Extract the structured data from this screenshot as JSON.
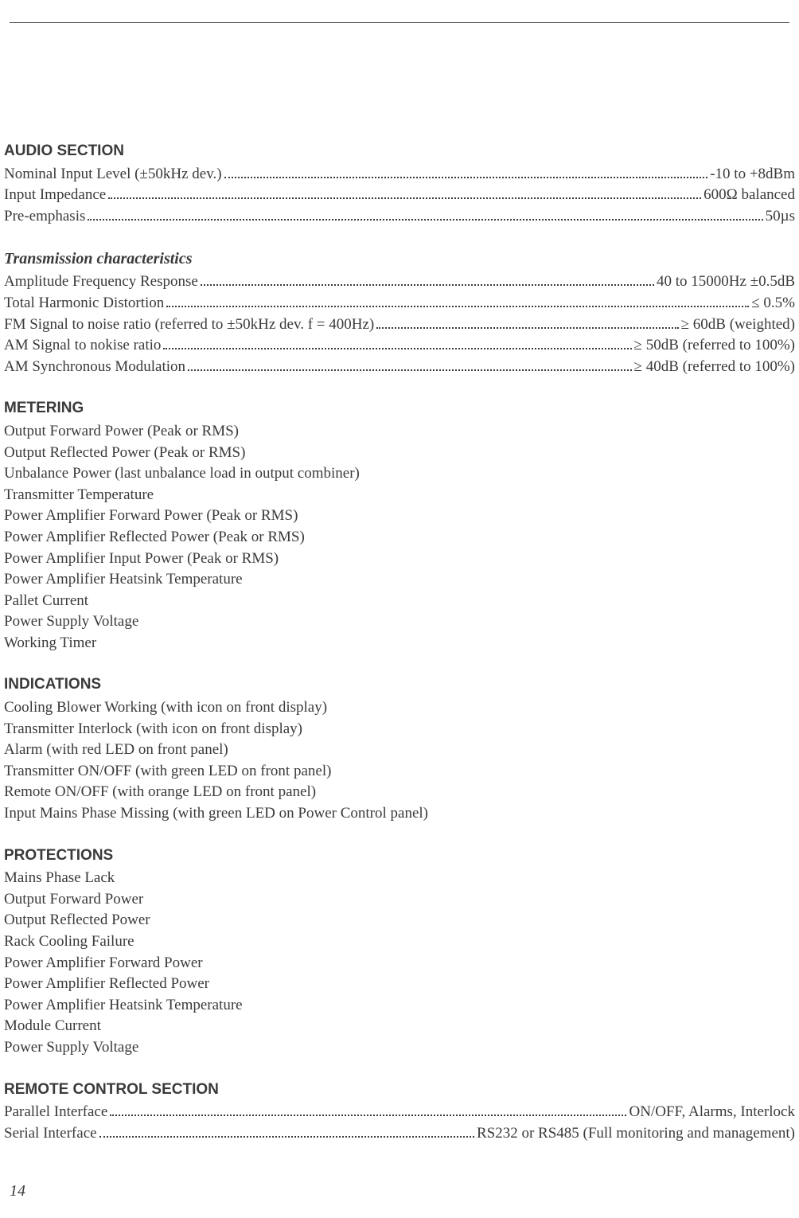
{
  "page_number": "14",
  "sections": {
    "audio": {
      "title": "AUDIO SECTION",
      "specs": [
        {
          "label": "Nominal Input Level (±50kHz dev.)",
          "value": "-10 to +8dBm"
        },
        {
          "label": "Input Impedance",
          "value": "600Ω balanced"
        },
        {
          "label": "Pre-emphasis",
          "value": "50µs"
        }
      ]
    },
    "transmission": {
      "title": "Transmission characteristics",
      "specs": [
        {
          "label": "Amplitude Frequency Response",
          "value": "40 to 15000Hz ±0.5dB"
        },
        {
          "label": "Total Harmonic Distortion",
          "value": "≤ 0.5%"
        },
        {
          "label": "FM Signal to noise ratio (referred to ±50kHz dev. f = 400Hz)",
          "value": "≥ 60dB (weighted)"
        },
        {
          "label": "AM Signal to nokise ratio",
          "value": "≥ 50dB (referred to 100%)"
        },
        {
          "label": "AM Synchronous Modulation",
          "value": "≥ 40dB (referred to 100%)"
        }
      ]
    },
    "metering": {
      "title": "METERING",
      "items": [
        "Output Forward Power (Peak or RMS)",
        "Output Reflected Power (Peak or RMS)",
        "Unbalance Power (last unbalance load in output combiner)",
        "Transmitter Temperature",
        "Power Amplifier Forward Power (Peak or RMS)",
        "Power Amplifier Reflected Power (Peak or RMS)",
        "Power Amplifier Input Power (Peak or RMS)",
        "Power Amplifier Heatsink Temperature",
        "Pallet Current",
        "Power Supply Voltage",
        "Working Timer"
      ]
    },
    "indications": {
      "title": "INDICATIONS",
      "items": [
        "Cooling Blower Working (with icon on front display)",
        "Transmitter Interlock (with icon on front display)",
        "Alarm (with red LED on front panel)",
        "Transmitter ON/OFF (with green LED on front panel)",
        "Remote ON/OFF (with orange LED on front panel)",
        "Input Mains Phase Missing (with green LED on Power Control panel)"
      ]
    },
    "protections": {
      "title": "PROTECTIONS",
      "items": [
        "Mains Phase Lack",
        "Output Forward Power",
        "Output Reflected Power",
        "Rack Cooling Failure",
        "Power Amplifier Forward Power",
        "Power Amplifier Reflected Power",
        "Power Amplifier Heatsink Temperature",
        "Module Current",
        "Power Supply Voltage"
      ]
    },
    "remote": {
      "title": "REMOTE CONTROL SECTION",
      "specs": [
        {
          "label": "Parallel Interface",
          "value": "ON/OFF, Alarms, Interlock"
        },
        {
          "label": "Serial Interface",
          "value": "RS232 or RS485 (Full monitoring and management)"
        }
      ]
    }
  }
}
